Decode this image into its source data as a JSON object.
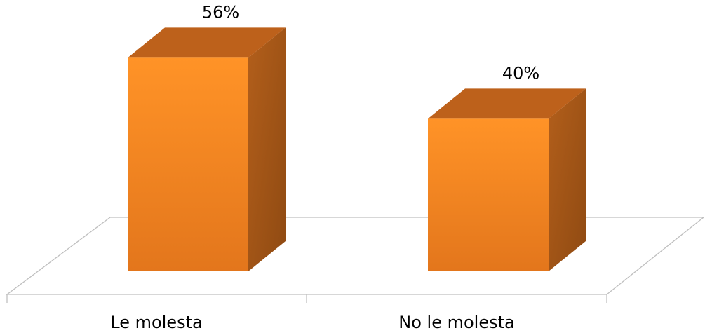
{
  "chart_data": {
    "type": "bar",
    "categories": [
      "Le molesta",
      "No le molesta"
    ],
    "values": [
      56,
      40
    ],
    "value_suffix": "%",
    "ylim": [
      0,
      60
    ],
    "grid": false,
    "legend": "none",
    "colors": {
      "bar_front_top": "#ff9327",
      "bar_front_bottom": "#e3761c",
      "bar_top": "#bd611b",
      "bar_side_light": "#b35f1b",
      "bar_side_dark": "#8f4a12",
      "floor_line": "#bfbfbf"
    }
  }
}
